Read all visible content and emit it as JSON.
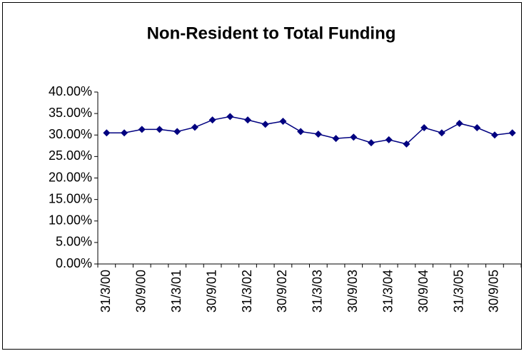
{
  "chart_data": {
    "type": "line",
    "title": "Non-Resident to Total Funding",
    "categories": [
      "31/3/00",
      null,
      "30/9/00",
      null,
      "31/3/01",
      null,
      "30/9/01",
      null,
      "31/3/02",
      null,
      "30/9/02",
      null,
      "31/3/03",
      null,
      "30/9/03",
      null,
      "31/3/04",
      null,
      "30/9/04",
      null,
      "31/3/05",
      null,
      "30/9/05",
      null
    ],
    "series": [
      {
        "color": "#000080",
        "values": [
          30.5,
          30.5,
          31.3,
          31.3,
          30.8,
          31.8,
          33.5,
          34.3,
          33.5,
          32.5,
          33.2,
          30.8,
          30.2,
          29.2,
          29.5,
          28.2,
          28.9,
          27.9,
          31.7,
          30.5,
          32.7,
          31.7,
          30.0,
          30.5
        ]
      }
    ],
    "ylim": [
      0,
      40
    ],
    "yticks": [
      {
        "value": 0,
        "label": "0.00%"
      },
      {
        "value": 5,
        "label": "5.00%"
      },
      {
        "value": 10,
        "label": "10.00%"
      },
      {
        "value": 15,
        "label": "15.00%"
      },
      {
        "value": 20,
        "label": "20.00%"
      },
      {
        "value": 25,
        "label": "25.00%"
      },
      {
        "value": 30,
        "label": "30.00%"
      },
      {
        "value": 35,
        "label": "35.00%"
      },
      {
        "value": 40,
        "label": "40.00%"
      }
    ],
    "grid": false
  }
}
